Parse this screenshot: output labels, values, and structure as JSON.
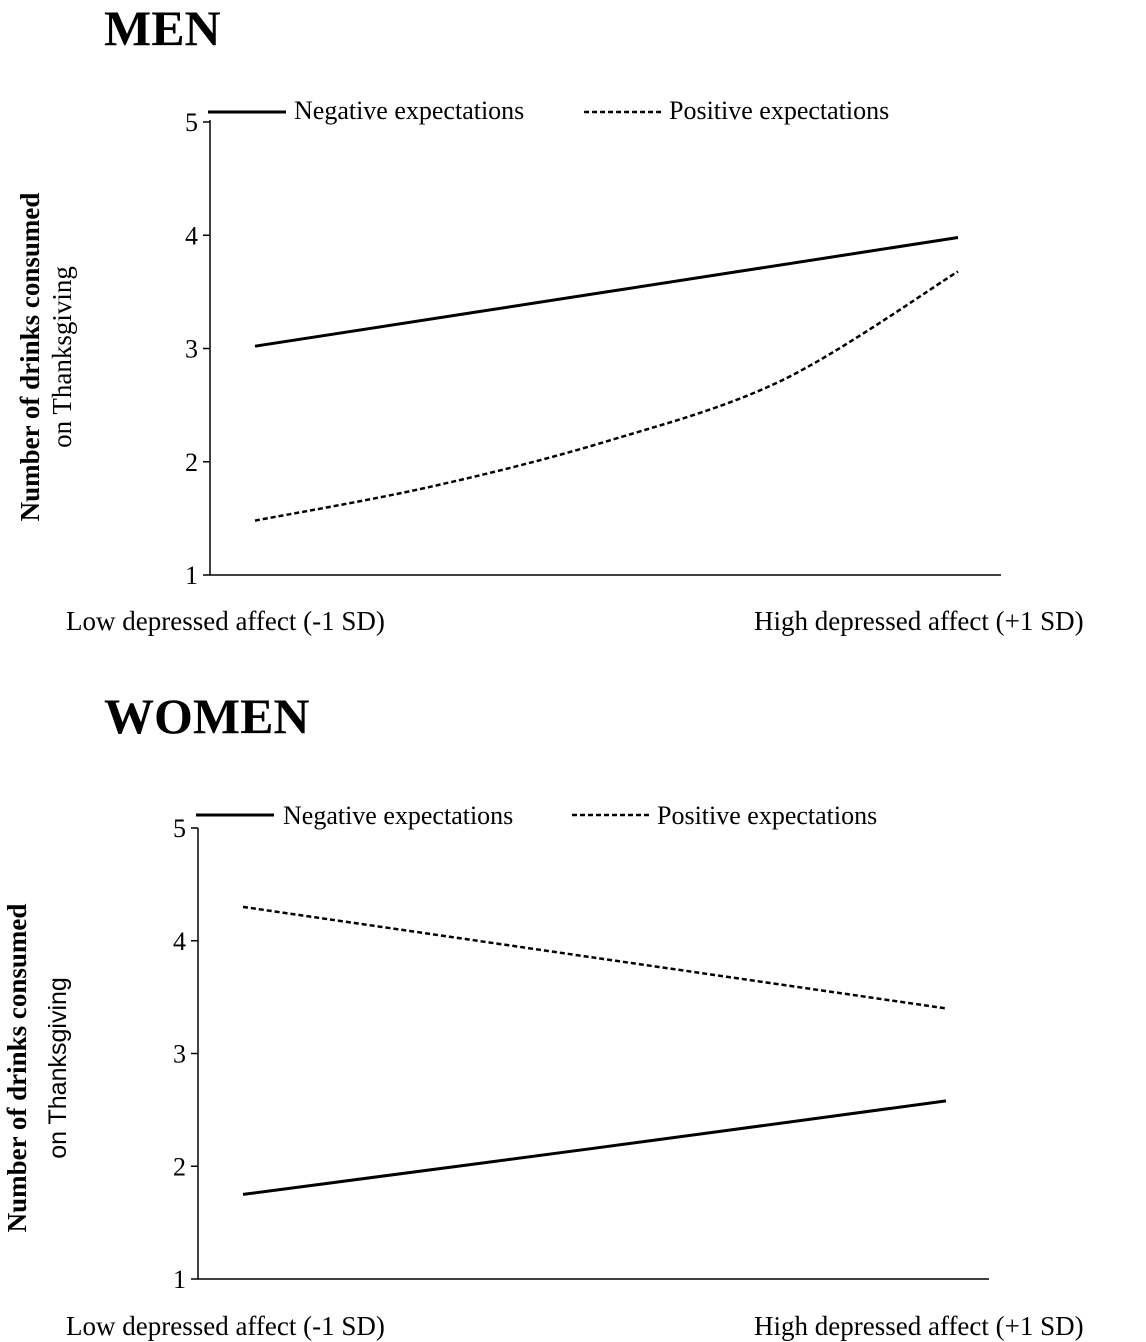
{
  "chart_data": [
    {
      "type": "line",
      "title": "MEN",
      "ylabel": [
        "Number of drinks consumed",
        "on Thanksgiving"
      ],
      "categories": [
        "Low depressed affect (-1 SD)",
        "High depressed affect (+1 SD)"
      ],
      "ylim": [
        1,
        5
      ],
      "yticks": [
        "1",
        "2",
        "3",
        "4",
        "5"
      ],
      "grid": false,
      "legend_position": "top",
      "series": [
        {
          "name": "Negative expectations",
          "style": "solid",
          "values": [
            3.02,
            3.98
          ],
          "mid_values": [
            3.5
          ]
        },
        {
          "name": "Positive expectations",
          "style": "dashed",
          "values": [
            1.48,
            3.68
          ],
          "mid_values": [
            1.78,
            2.18,
            2.72
          ]
        }
      ]
    },
    {
      "type": "line",
      "title": "WOMEN",
      "ylabel": [
        "Number of drinks consumed",
        "on Thanksgiving"
      ],
      "categories": [
        "Low depressed affect (-1 SD)",
        "High depressed affect (+1 SD)"
      ],
      "ylim": [
        1,
        5
      ],
      "yticks": [
        "1",
        "2",
        "3",
        "4",
        "5"
      ],
      "grid": false,
      "legend_position": "top",
      "series": [
        {
          "name": "Negative expectations",
          "style": "solid",
          "values": [
            1.75,
            2.58
          ],
          "mid_values": [
            2.16
          ]
        },
        {
          "name": "Positive expectations",
          "style": "dashed",
          "values": [
            4.3,
            3.4
          ],
          "mid_values": [
            3.85
          ]
        }
      ]
    }
  ]
}
